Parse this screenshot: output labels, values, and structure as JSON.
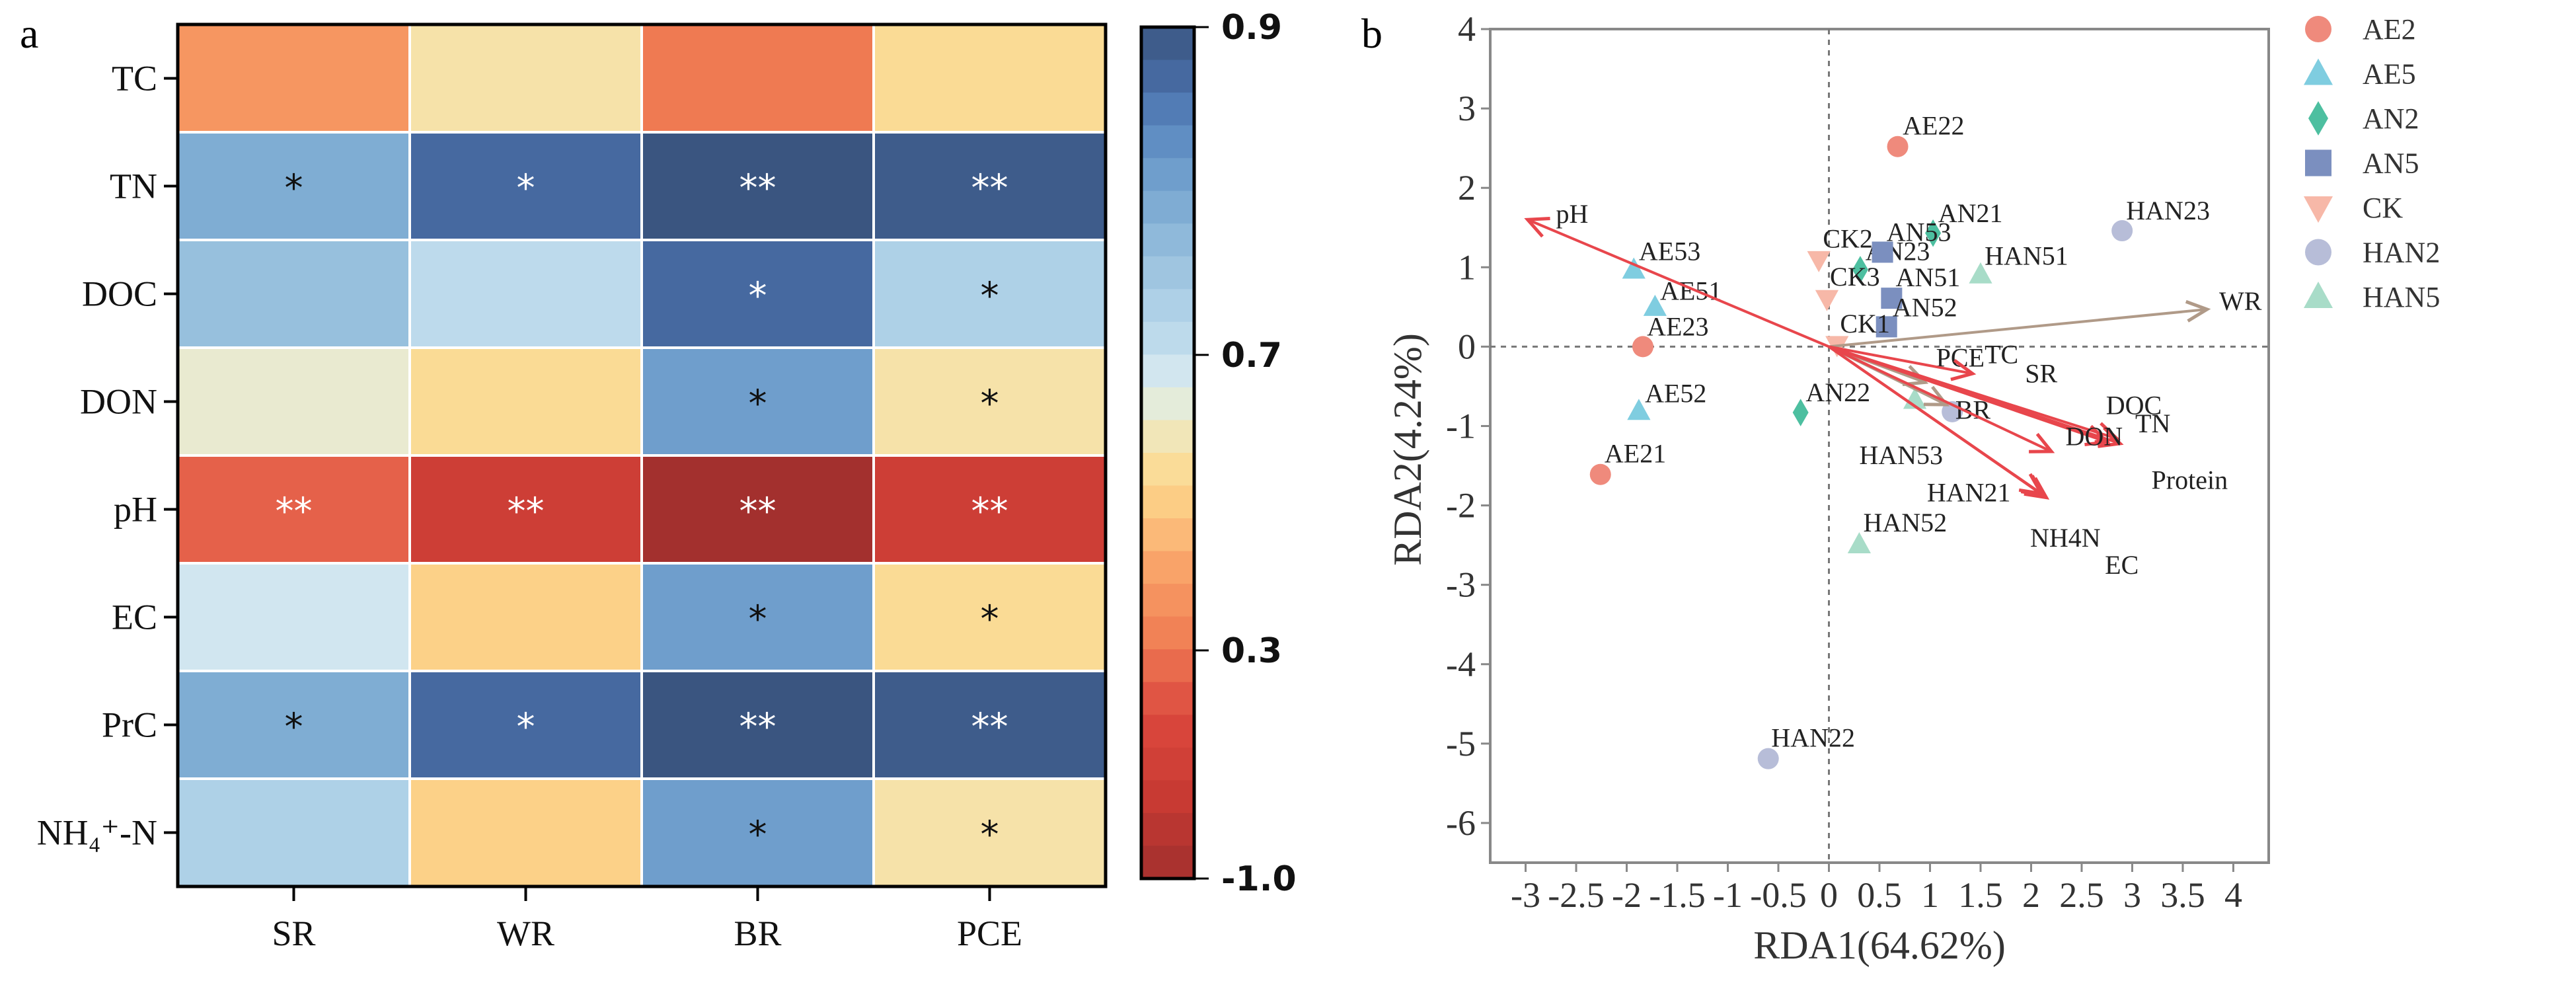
{
  "chart_data": [
    {
      "type": "heatmap",
      "panel_label": "a",
      "columns": [
        "SR",
        "WR",
        "BR",
        "PCE"
      ],
      "rows": [
        "TC",
        "TN",
        "DOC",
        "DON",
        "pH",
        "EC",
        "PrC",
        "NH₄⁺-N"
      ],
      "values": [
        [
          0.38,
          0.57,
          0.3,
          0.54
        ],
        [
          0.79,
          0.87,
          0.9,
          0.89
        ],
        [
          0.76,
          0.71,
          0.87,
          0.73
        ],
        [
          0.62,
          0.54,
          0.81,
          0.57
        ],
        [
          0.15,
          -0.4,
          -1.0,
          -0.4
        ],
        [
          0.68,
          0.51,
          0.81,
          0.54
        ],
        [
          0.79,
          0.87,
          0.9,
          0.89
        ],
        [
          0.73,
          0.51,
          0.81,
          0.57
        ]
      ],
      "significance": [
        [
          "",
          "",
          "",
          ""
        ],
        [
          "*",
          "*",
          "**",
          "**"
        ],
        [
          "",
          "",
          "*",
          "*"
        ],
        [
          "",
          "",
          "*",
          "*"
        ],
        [
          "**",
          "**",
          "**",
          "**"
        ],
        [
          "",
          "",
          "*",
          "*"
        ],
        [
          "*",
          "*",
          "**",
          "**"
        ],
        [
          "",
          "",
          "*",
          "*"
        ]
      ],
      "colorbar": {
        "ticks": [
          0.9,
          0.7,
          0.3,
          -1.0
        ],
        "tick_labels": [
          "0.9",
          "0.7",
          "0.3",
          "-1.0"
        ],
        "range": [
          -1.0,
          0.9
        ]
      },
      "colorscale": [
        [
          -1.0,
          "#a3302e"
        ],
        [
          -0.55,
          "#c73a33"
        ],
        [
          -0.15,
          "#d8453b"
        ],
        [
          0.15,
          "#e5614a"
        ],
        [
          0.3,
          "#ef7a52"
        ],
        [
          0.4,
          "#f89d65"
        ],
        [
          0.47,
          "#fcc07c"
        ],
        [
          0.53,
          "#fcd98e"
        ],
        [
          0.58,
          "#f4e4b0"
        ],
        [
          0.63,
          "#e6ecd8"
        ],
        [
          0.68,
          "#d1e6f0"
        ],
        [
          0.72,
          "#b6d6ea"
        ],
        [
          0.76,
          "#97c0dd"
        ],
        [
          0.8,
          "#77a6d0"
        ],
        [
          0.84,
          "#5886bf"
        ],
        [
          0.87,
          "#4669a0"
        ],
        [
          0.9,
          "#3a5580"
        ]
      ]
    },
    {
      "type": "scatter",
      "panel_label": "b",
      "xlabel": "RDA1(64.62%)",
      "ylabel": "RDA2(4.24%)",
      "xlim": [
        -3.35,
        4.35
      ],
      "ylim": [
        -6.5,
        4.0
      ],
      "xticks": [
        -3,
        -2.5,
        -2,
        -1.5,
        -1,
        -0.5,
        0,
        0.5,
        1,
        1.5,
        2,
        2.5,
        3,
        3.5,
        4
      ],
      "xtick_labels": [
        "-3",
        "-2.5",
        "-2",
        "-1.5",
        "-1",
        "-0.5",
        "0",
        "0.5",
        "1",
        "1.5",
        "2",
        "2.5",
        "3",
        "3.5",
        "4"
      ],
      "yticks": [
        4,
        3,
        2,
        1,
        0,
        -1,
        -2,
        -3,
        -4,
        -5,
        -6
      ],
      "ytick_labels": [
        "4",
        "3",
        "2",
        "1",
        "0",
        "-1",
        "-2",
        "-3",
        "-4",
        "-5",
        "-6"
      ],
      "grid": false,
      "reference_lines": "dashed at x=0 and y=0",
      "legend_position": "right-outside",
      "groups": [
        {
          "name": "AE2",
          "marker": "circle",
          "color": "#ef8a7c",
          "points": [
            {
              "label": "AE22",
              "x": 0.68,
              "y": 2.52,
              "lx": 0.73,
              "ly": 2.67
            },
            {
              "label": "AE23",
              "x": -1.84,
              "y": 0.0,
              "lx": -1.8,
              "ly": 0.14
            },
            {
              "label": "AE21",
              "x": -2.26,
              "y": -1.61,
              "lx": -2.22,
              "ly": -1.46
            }
          ]
        },
        {
          "name": "AE5",
          "marker": "triangle",
          "color": "#7fcde0",
          "points": [
            {
              "label": "AE53",
              "x": -1.93,
              "y": 0.97,
              "lx": -1.88,
              "ly": 1.09
            },
            {
              "label": "AE51",
              "x": -1.72,
              "y": 0.5,
              "lx": -1.67,
              "ly": 0.59
            },
            {
              "label": "AE52",
              "x": -1.88,
              "y": -0.81,
              "lx": -1.82,
              "ly": -0.7
            }
          ]
        },
        {
          "name": "AN2",
          "marker": "diamond",
          "color": "#4dbfa0",
          "points": [
            {
              "label": "AN21",
              "x": 1.03,
              "y": 1.43,
              "lx": 1.08,
              "ly": 1.57
            },
            {
              "label": "AN23",
              "x": 0.31,
              "y": 0.97,
              "lx": 0.36,
              "ly": 1.09
            },
            {
              "label": "AN22",
              "x": -0.28,
              "y": -0.83,
              "lx": -0.23,
              "ly": -0.69
            }
          ]
        },
        {
          "name": "AN5",
          "marker": "square",
          "color": "#7b8fbf",
          "points": [
            {
              "label": "AN53",
              "x": 0.53,
              "y": 1.19,
              "lx": 0.57,
              "ly": 1.33
            },
            {
              "label": "AN51",
              "x": 0.62,
              "y": 0.61,
              "lx": 0.66,
              "ly": 0.76
            },
            {
              "label": "AN52",
              "x": 0.57,
              "y": 0.25,
              "lx": 0.63,
              "ly": 0.38
            }
          ]
        },
        {
          "name": "CK",
          "marker": "triangle-down",
          "color": "#f7b8a8",
          "points": [
            {
              "label": "CK2",
              "x": -0.1,
              "y": 1.09,
              "lx": -0.06,
              "ly": 1.25
            },
            {
              "label": "CK3",
              "x": -0.02,
              "y": 0.6,
              "lx": 0.01,
              "ly": 0.77
            },
            {
              "label": "CK1",
              "x": 0.08,
              "y": 0.02,
              "lx": 0.11,
              "ly": 0.18
            }
          ]
        },
        {
          "name": "HAN2",
          "marker": "circle",
          "color": "#b7bdd8",
          "points": [
            {
              "label": "HAN23",
              "x": 2.9,
              "y": 1.46,
              "lx": 2.94,
              "ly": 1.6
            },
            {
              "label": "HAN22",
              "x": -0.6,
              "y": -5.19,
              "lx": -0.57,
              "ly": -5.04
            },
            {
              "label": "HAN21",
              "x": 1.22,
              "y": -0.82,
              "lx": 0.97,
              "ly": -1.95
            }
          ]
        },
        {
          "name": "HAN5",
          "marker": "triangle",
          "color": "#a8dcc8",
          "points": [
            {
              "label": "HAN51",
              "x": 1.5,
              "y": 0.91,
              "lx": 1.54,
              "ly": 1.03
            },
            {
              "label": "HAN52",
              "x": 0.3,
              "y": -2.49,
              "lx": 0.34,
              "ly": -2.33
            },
            {
              "label": "HAN53",
              "x": 0.85,
              "y": -0.67,
              "lx": 0.3,
              "ly": -1.48
            }
          ]
        }
      ],
      "vectors": [
        {
          "name": "pH",
          "x": -2.98,
          "y": 1.6,
          "lx": -2.7,
          "ly": 1.56,
          "color": "#e8464c"
        },
        {
          "name": "WR",
          "x": 3.74,
          "y": 0.47,
          "lx": 3.86,
          "ly": 0.46,
          "color": "#b09a88"
        },
        {
          "name": "BR",
          "x": 1.16,
          "y": -0.73,
          "lx": 1.25,
          "ly": -0.91,
          "color": "#b09a88"
        },
        {
          "name": "PCE",
          "x": 0.95,
          "y": -0.45,
          "lx": 1.06,
          "ly": -0.25,
          "color": "#b09a88"
        },
        {
          "name": "TC",
          "x": 1.42,
          "y": -0.34,
          "lx": 1.54,
          "ly": -0.21,
          "color": "#e8464c"
        },
        {
          "name": "SR",
          "x": 2.2,
          "y": -1.32,
          "lx": 1.94,
          "ly": -0.45,
          "color": "#e8464c"
        },
        {
          "name": "DOC",
          "x": 2.85,
          "y": -1.16,
          "lx": 2.74,
          "ly": -0.85,
          "color": "#e8464c"
        },
        {
          "name": "TN",
          "x": 2.88,
          "y": -1.22,
          "lx": 3.03,
          "ly": -1.08,
          "color": "#e8464c"
        },
        {
          "name": "DON",
          "x": 2.75,
          "y": -1.2,
          "lx": 2.34,
          "ly": -1.24,
          "color": "#e8464c"
        },
        {
          "name": "Protein",
          "x": 2.12,
          "y": -1.87,
          "lx": 3.19,
          "ly": -1.79,
          "color": "#e8464c"
        },
        {
          "name": "NH4N",
          "x": 2.1,
          "y": -1.85,
          "lx": 1.99,
          "ly": -2.52,
          "color": "#e8464c"
        },
        {
          "name": "EC",
          "x": 2.15,
          "y": -1.9,
          "lx": 2.73,
          "ly": -2.86,
          "color": "#e8464c"
        }
      ]
    }
  ]
}
